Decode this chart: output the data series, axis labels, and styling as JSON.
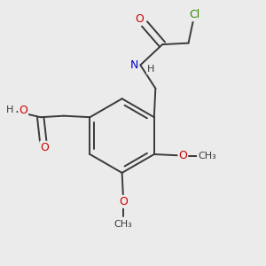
{
  "bg_color": "#ebebeb",
  "bond_color": "#3a3a3a",
  "atom_colors": {
    "O": "#cc0000",
    "N": "#0000cc",
    "Cl": "#338800",
    "C": "#3a3a3a",
    "H": "#3a3a3a"
  },
  "figsize": [
    3.0,
    3.0
  ],
  "dpi": 100
}
